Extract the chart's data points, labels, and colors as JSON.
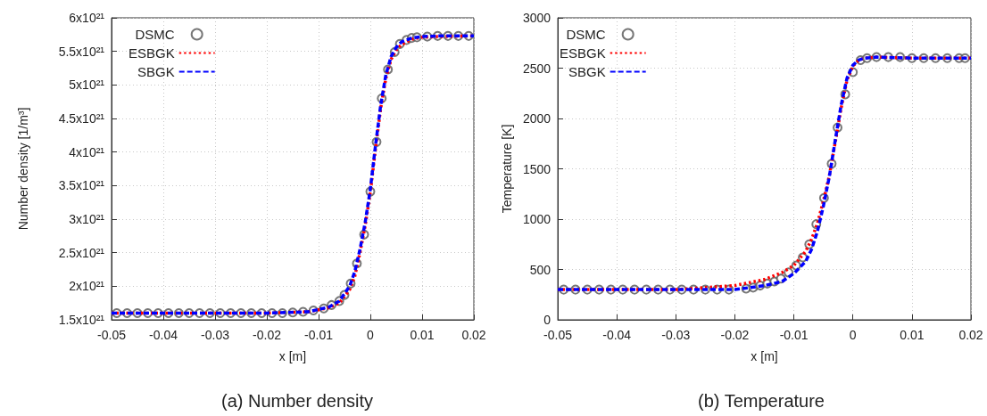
{
  "chart_data": [
    {
      "type": "line",
      "title": "(a) Number density",
      "xlabel": "x [m]",
      "ylabel": "Number density [1/m³]",
      "xlim": [
        -0.05,
        0.02
      ],
      "xticks": [
        -0.05,
        -0.04,
        -0.03,
        -0.02,
        -0.01,
        0,
        0.01,
        0.02
      ],
      "ylim": [
        1.5e+21,
        6e+21
      ],
      "yticks": [
        {
          "value": 1.5e+21,
          "label": "1.5x10²¹"
        },
        {
          "value": 2e+21,
          "label": "2x10²¹"
        },
        {
          "value": 2.5e+21,
          "label": "2.5x10²¹"
        },
        {
          "value": 3e+21,
          "label": "3x10²¹"
        },
        {
          "value": 3.5e+21,
          "label": "3.5x10²¹"
        },
        {
          "value": 4e+21,
          "label": "4x10²¹"
        },
        {
          "value": 4.5e+21,
          "label": "4.5x10²¹"
        },
        {
          "value": 5e+21,
          "label": "5x10²¹"
        },
        {
          "value": 5.5e+21,
          "label": "5.5x10²¹"
        },
        {
          "value": 6e+21,
          "label": "6x10²¹"
        }
      ],
      "grid": true,
      "legend": "top left",
      "series": [
        {
          "name": "DSMC",
          "type": "scatter",
          "marker": "circle",
          "color": "#555555",
          "x": [
            -0.049,
            -0.047,
            -0.045,
            -0.043,
            -0.041,
            -0.039,
            -0.037,
            -0.035,
            -0.033,
            -0.031,
            -0.029,
            -0.027,
            -0.025,
            -0.023,
            -0.021,
            -0.019,
            -0.017,
            -0.015,
            -0.013,
            -0.011,
            -0.009,
            -0.0075,
            -0.006,
            -0.005,
            -0.0038,
            -0.0026,
            -0.0012,
            0,
            0.0012,
            0.0022,
            0.0034,
            0.0047,
            0.0057,
            0.007,
            0.008,
            0.009,
            0.011,
            0.013,
            0.015,
            0.017,
            0.019
          ],
          "values": [
            1.6e+21,
            1.6e+21,
            1.6e+21,
            1.6e+21,
            1.6e+21,
            1.6e+21,
            1.6e+21,
            1.6e+21,
            1.6e+21,
            1.6e+21,
            1.6e+21,
            1.6e+21,
            1.6e+21,
            1.6e+21,
            1.6e+21,
            1.6e+21,
            1.6e+21,
            1.61e+21,
            1.62e+21,
            1.64e+21,
            1.67e+21,
            1.72e+21,
            1.78e+21,
            1.87e+21,
            2.04e+21,
            2.34e+21,
            2.77e+21,
            3.41e+21,
            4.15e+21,
            4.8e+21,
            5.23e+21,
            5.49e+21,
            5.61e+21,
            5.67e+21,
            5.7e+21,
            5.71e+21,
            5.72e+21,
            5.73e+21,
            5.73e+21,
            5.73e+21,
            5.73e+21
          ]
        },
        {
          "name": "ESBGK",
          "marker": "none",
          "line_style": "dotted",
          "color": "#ff0000",
          "x": [
            -0.05,
            -0.02,
            -0.012,
            -0.008,
            -0.006,
            -0.004,
            -0.003,
            -0.002,
            -0.001,
            0,
            0.001,
            0.002,
            0.003,
            0.004,
            0.005,
            0.006,
            0.008,
            0.01,
            0.013,
            0.02
          ],
          "values": [
            1.6e+21,
            1.6e+21,
            1.62e+21,
            1.68e+21,
            1.75e+21,
            1.95e+21,
            2.15e+21,
            2.5e+21,
            2.9e+21,
            3.4e+21,
            4.05e+21,
            4.65e+21,
            5.1e+21,
            5.38e+21,
            5.52e+21,
            5.6e+21,
            5.68e+21,
            5.71e+21,
            5.72e+21,
            5.73e+21
          ]
        },
        {
          "name": "SBGK",
          "marker": "none",
          "line_style": "dashed",
          "color": "#0000ff",
          "x": [
            -0.05,
            -0.02,
            -0.012,
            -0.008,
            -0.006,
            -0.004,
            -0.003,
            -0.002,
            -0.001,
            0,
            0.001,
            0.002,
            0.003,
            0.004,
            0.005,
            0.006,
            0.008,
            0.01,
            0.013,
            0.02
          ],
          "values": [
            1.6e+21,
            1.6e+21,
            1.62e+21,
            1.69e+21,
            1.78e+21,
            2e+21,
            2.22e+21,
            2.55e+21,
            2.95e+21,
            3.45e+21,
            4.1e+21,
            4.7e+21,
            5.15e+21,
            5.42e+21,
            5.56e+21,
            5.64e+21,
            5.7e+21,
            5.72e+21,
            5.73e+21,
            5.73e+21
          ]
        }
      ]
    },
    {
      "type": "line",
      "title": "(b) Temperature",
      "xlabel": "x [m]",
      "ylabel": "Temperature [K]",
      "xlim": [
        -0.05,
        0.02
      ],
      "xticks": [
        -0.05,
        -0.04,
        -0.03,
        -0.02,
        -0.01,
        0,
        0.01,
        0.02
      ],
      "ylim": [
        0,
        3000
      ],
      "yticks": [
        0,
        500,
        1000,
        1500,
        2000,
        2500,
        3000
      ],
      "grid": true,
      "legend": "top left",
      "series": [
        {
          "name": "DSMC",
          "type": "scatter",
          "marker": "circle",
          "color": "#555555",
          "x": [
            -0.049,
            -0.047,
            -0.045,
            -0.043,
            -0.041,
            -0.039,
            -0.037,
            -0.035,
            -0.033,
            -0.031,
            -0.029,
            -0.027,
            -0.025,
            -0.023,
            -0.021,
            -0.0181,
            -0.0169,
            -0.0157,
            -0.0145,
            -0.0133,
            -0.0122,
            -0.0109,
            -0.0096,
            -0.0085,
            -0.0074,
            -0.0062,
            -0.0049,
            -0.0036,
            -0.0026,
            -0.0013,
            0,
            0.0013,
            0.0024,
            0.004,
            0.006,
            0.008,
            0.01,
            0.012,
            0.014,
            0.016,
            0.018,
            0.019
          ],
          "values": [
            300,
            300,
            300,
            300,
            300,
            300,
            300,
            300,
            300,
            300,
            300,
            300,
            300,
            300,
            300,
            310,
            320,
            340,
            360,
            380,
            410,
            470,
            540,
            620,
            750,
            950,
            1210,
            1550,
            1910,
            2240,
            2460,
            2580,
            2600,
            2610,
            2610,
            2610,
            2600,
            2600,
            2600,
            2600,
            2600,
            2600
          ]
        },
        {
          "name": "ESBGK",
          "marker": "none",
          "line_style": "dotted",
          "color": "#ff0000",
          "x": [
            -0.05,
            -0.03,
            -0.025,
            -0.02,
            -0.015,
            -0.012,
            -0.01,
            -0.008,
            -0.007,
            -0.006,
            -0.005,
            -0.004,
            -0.003,
            -0.002,
            -0.001,
            0,
            0.001,
            0.002,
            0.004,
            0.01,
            0.02
          ],
          "values": [
            300,
            300,
            320,
            340,
            400,
            470,
            540,
            680,
            800,
            960,
            1180,
            1430,
            1760,
            2100,
            2380,
            2520,
            2580,
            2600,
            2610,
            2600,
            2600
          ]
        },
        {
          "name": "SBGK",
          "marker": "none",
          "line_style": "dashed",
          "color": "#0000ff",
          "x": [
            -0.05,
            -0.02,
            -0.015,
            -0.012,
            -0.01,
            -0.008,
            -0.007,
            -0.006,
            -0.005,
            -0.004,
            -0.003,
            -0.002,
            -0.001,
            0,
            0.001,
            0.002,
            0.004,
            0.01,
            0.02
          ],
          "values": [
            300,
            300,
            340,
            380,
            460,
            580,
            700,
            880,
            1130,
            1420,
            1780,
            2130,
            2400,
            2530,
            2580,
            2600,
            2610,
            2600,
            2600
          ]
        }
      ]
    }
  ]
}
